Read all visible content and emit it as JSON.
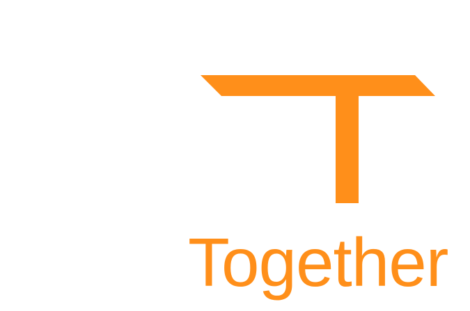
{
  "brand": {
    "wordmark": "Together",
    "color": "#FF8F1A"
  },
  "logo": {
    "icon": "t-logo-icon"
  }
}
